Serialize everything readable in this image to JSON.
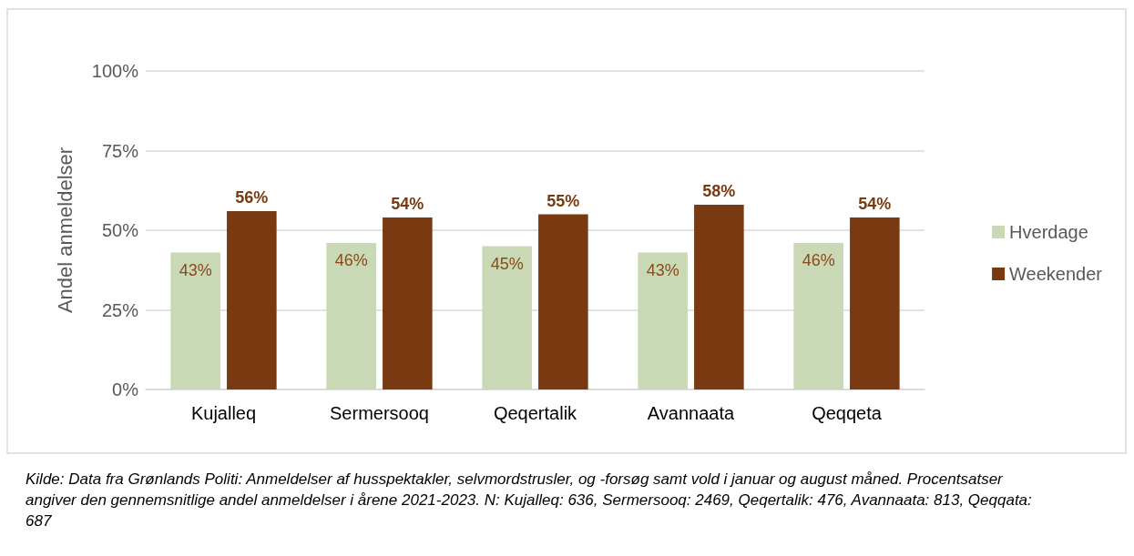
{
  "chart_data": {
    "type": "bar",
    "ylabel": "Andel anmeldelser",
    "categories": [
      "Kujalleq",
      "Sermersooq",
      "Qeqertalik",
      "Avannaata",
      "Qeqqeta"
    ],
    "series": [
      {
        "name": "Hverdage",
        "color": "#c9d8b5",
        "values": [
          43,
          46,
          45,
          43,
          46
        ],
        "value_labels": [
          "43%",
          "46%",
          "45%",
          "43%",
          "46%"
        ]
      },
      {
        "name": "Weekender",
        "color": "#7a3a11",
        "values": [
          56,
          54,
          55,
          58,
          54
        ],
        "value_labels": [
          "56%",
          "54%",
          "55%",
          "58%",
          "54%"
        ]
      }
    ],
    "ylim": [
      0,
      100
    ],
    "yticks": [
      {
        "value": 0,
        "label": "0%"
      },
      {
        "value": 25,
        "label": "25%"
      },
      {
        "value": 50,
        "label": "50%"
      },
      {
        "value": 75,
        "label": "75%"
      },
      {
        "value": 100,
        "label": "100%"
      }
    ],
    "grid": "y",
    "legend": "right",
    "annotations": [
      "Kilde: Data fra Grønlands Politi: Anmeldelser af husspektakler, selvmordstrusler, og -forsøg samt vold i januar og august måned. Procentsatser angiver den gennemsnitlige andel anmeldelser i årene 2021-2023. N: Kujalleq: 636, Sermersooq: 2469, Qeqertalik: 476, Avannaata: 813, Qeqqata: 687"
    ]
  }
}
